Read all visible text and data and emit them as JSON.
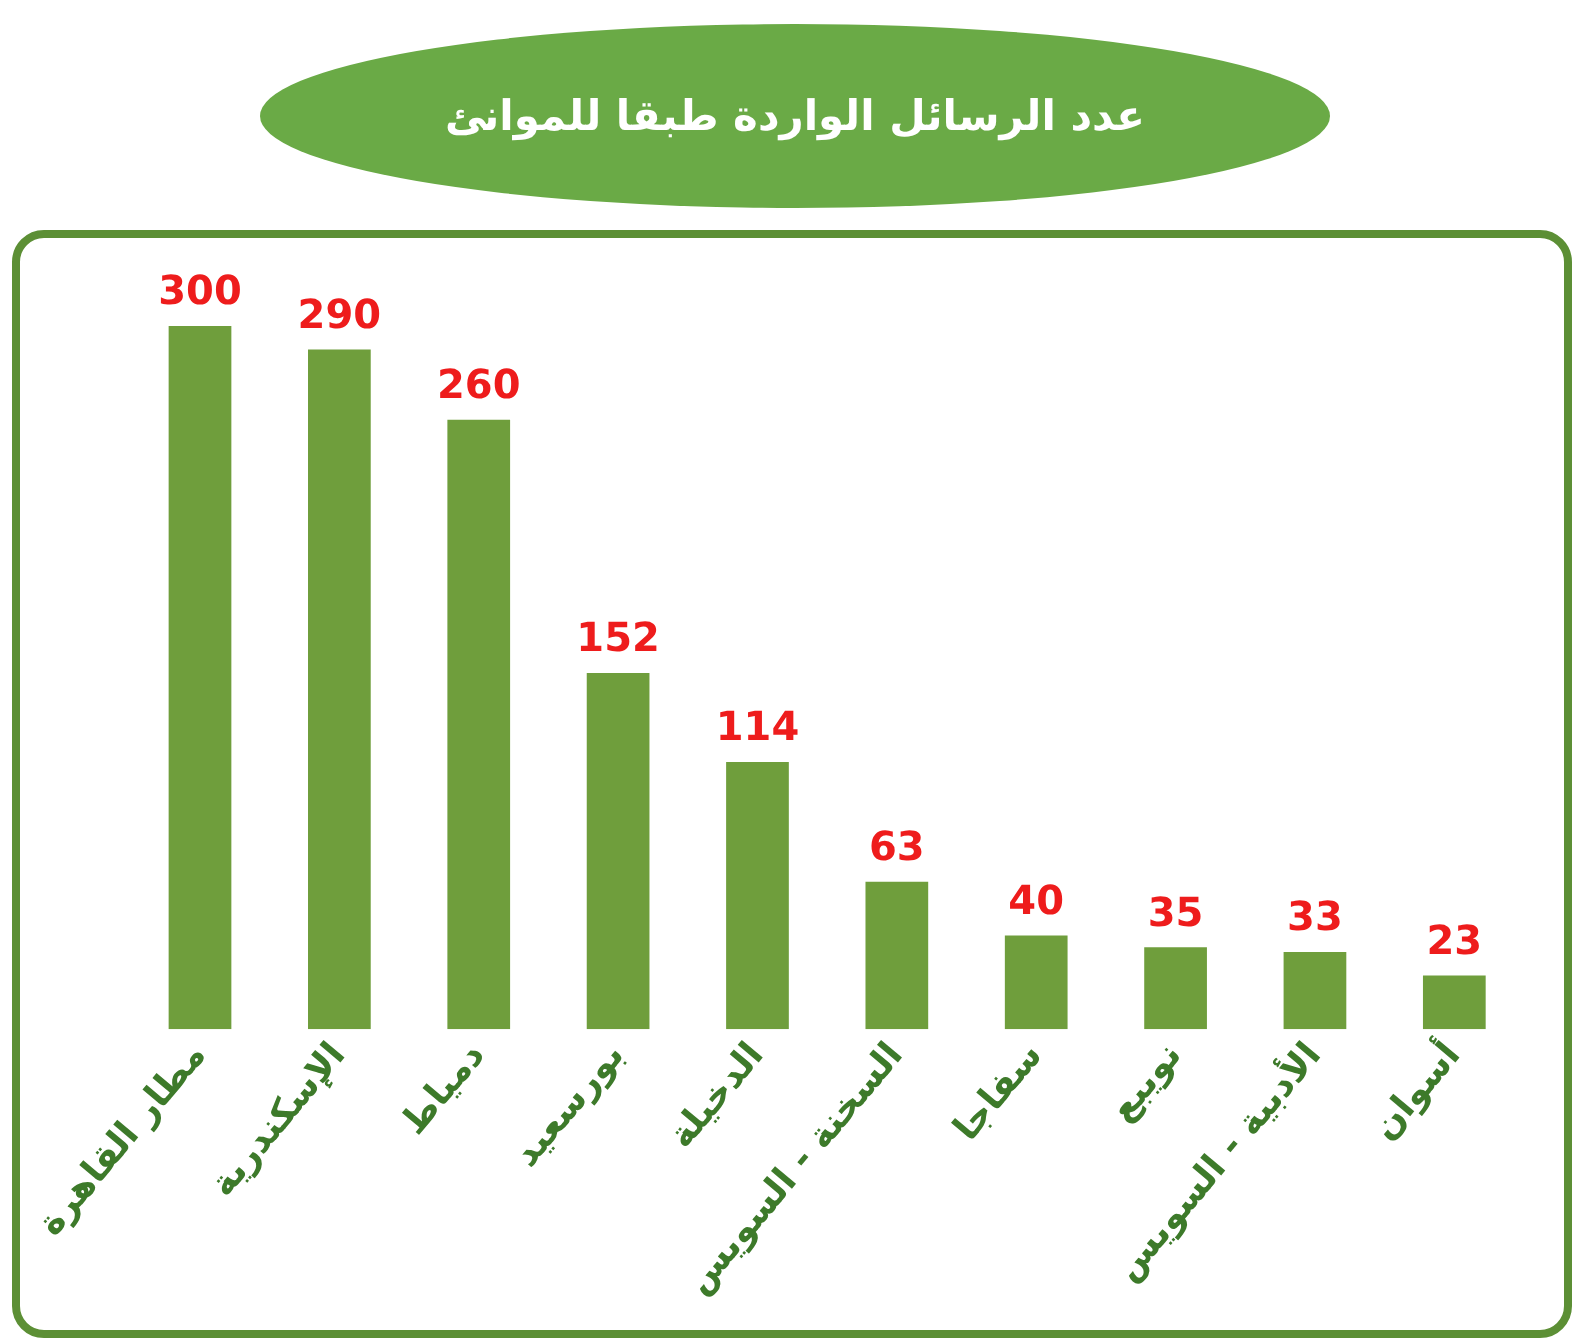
{
  "chart_data": {
    "type": "bar",
    "title": "عدد الرسائل الواردة طبقا للموانئ",
    "categories": [
      "مطار القاهرة",
      "الإسكندرية",
      "دمياط",
      "بورسعيد",
      "الدخيلة",
      "السخنة - السويس",
      "سفاجا",
      "نويبع",
      "الأدبية - السويس",
      "أسوان"
    ],
    "values": [
      300,
      290,
      260,
      152,
      114,
      63,
      40,
      35,
      33,
      23
    ],
    "color": "#6f9e3c",
    "data_labels": true,
    "tick_labels": "x",
    "grid": false,
    "legend": false
  }
}
